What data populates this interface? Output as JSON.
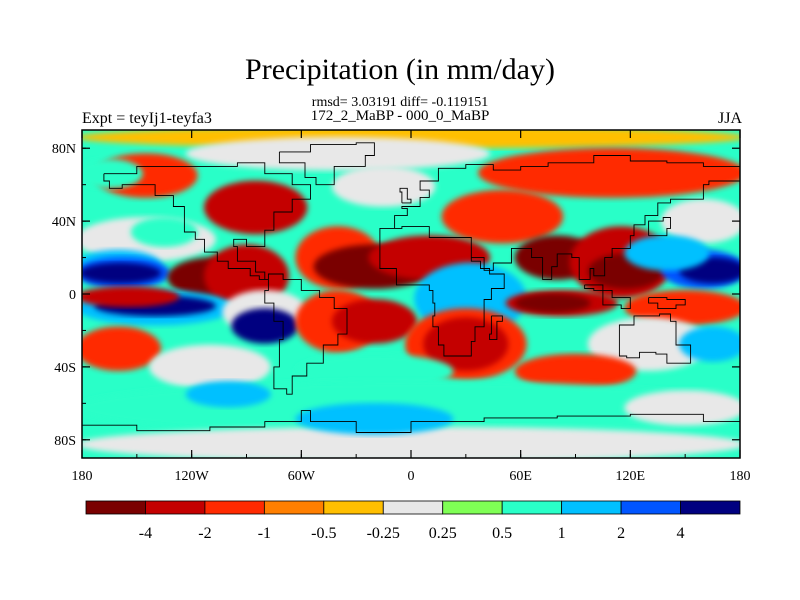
{
  "title": "Precipitation (in mm/day)",
  "stats_line": "rmsd= 3.03191 diff= -0.119151",
  "subtitle": "172_2_MaBP - 000_0_MaBP",
  "left_label": "Expt = teyIj1-teyfa3",
  "right_label": "JJA",
  "x_ticks": [
    {
      "lon": -180,
      "label": "180"
    },
    {
      "lon": -120,
      "label": "120W"
    },
    {
      "lon": -60,
      "label": "60W"
    },
    {
      "lon": 0,
      "label": "0"
    },
    {
      "lon": 60,
      "label": "60E"
    },
    {
      "lon": 120,
      "label": "120E"
    },
    {
      "lon": 180,
      "label": "180"
    }
  ],
  "y_ticks": [
    {
      "lat": 80,
      "label": "80N"
    },
    {
      "lat": 40,
      "label": "40N"
    },
    {
      "lat": 0,
      "label": "0"
    },
    {
      "lat": -40,
      "label": "40S"
    },
    {
      "lat": -80,
      "label": "80S"
    }
  ],
  "colorbar": {
    "colors": [
      "#7a0000",
      "#c40000",
      "#ff2a00",
      "#ff7f00",
      "#ffbf00",
      "#e8e8e8",
      "#7fff55",
      "#29ffc8",
      "#00c0ff",
      "#0055ff",
      "#000080"
    ],
    "labels": [
      "-4",
      "-2",
      "-1",
      "-0.5",
      "-0.25",
      "0.25",
      "0.5",
      "1",
      "2",
      "4"
    ]
  },
  "field_colors": {
    "strong_dry": "#7a0000",
    "dry": "#c40000",
    "mod_dry": "#ff2a00",
    "weak_dry": "#ff7f00",
    "slight_dry": "#ffbf00",
    "neutral": "#e8e8e8",
    "slight_wet": "#7fff55",
    "weak_wet": "#29ffc8",
    "mod_wet": "#00c0ff",
    "wet": "#0055ff",
    "strong_wet": "#000080"
  }
}
